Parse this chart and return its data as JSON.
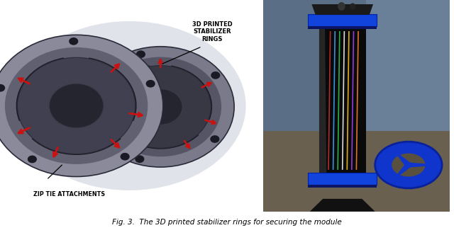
{
  "caption_text": "Fig. 3.  The 3D printed stabilizer rings for securing the module",
  "bg_color": "#ffffff",
  "figure_width": 6.4,
  "figure_height": 3.32,
  "caption_fontsize": 7.5,
  "caption_style": "italic",
  "caption_color": "black",
  "left_label_top": "3D PRINTED\nSTABILIZER\nRINGS",
  "left_label_bottom": "ZIP TIE ATTACHMENTS",
  "label_fontsize": 6.5,
  "label_fontweight": "bold",
  "label_color": "black",
  "left_panel_bg": "#ffffff",
  "left_blob_color": "#c8ccd8",
  "left_ring_outer": "#888898",
  "left_ring_mid": "#606070",
  "left_ring_inner": "#404050",
  "left_hub_color": "#252530",
  "left_body_color": "#2a2a35",
  "blue_rod_color": "#1a3a8a",
  "red_arrow_color": "#cc1111",
  "right_panel_bg": "#556677"
}
